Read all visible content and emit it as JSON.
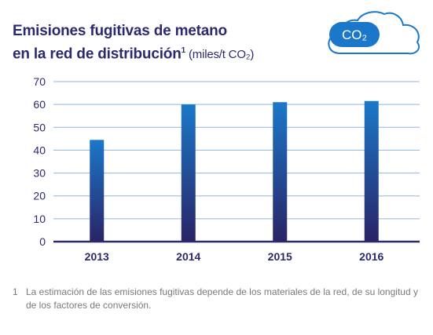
{
  "title": {
    "line1": "Emisiones fugitivas de metano",
    "line2": "en la red de distribución",
    "superscript": "1",
    "units": "(miles/t CO₂)"
  },
  "badge": {
    "icon": "cloud-icon",
    "text": "CO₂"
  },
  "colors": {
    "bar_top": "#1b78c8",
    "bar_bottom": "#2a2366",
    "axis": "#2b2a6e",
    "grid": "#8fb6dd",
    "cloud": "#1b78c8",
    "text": "#2b2a6e"
  },
  "chart_data": {
    "type": "bar",
    "categories": [
      "2013",
      "2014",
      "2015",
      "2016"
    ],
    "values": [
      44.5,
      60,
      61,
      61.5
    ],
    "ylim": [
      0,
      70
    ],
    "yticks": [
      "0",
      "10",
      "20",
      "30",
      "40",
      "50",
      "60",
      "70"
    ],
    "grid": true
  },
  "footnote": {
    "number": "1",
    "text": "La estimación de las emisiones fugitivas depende de los materiales de la red, de su longitud y de los factores de conversión."
  }
}
